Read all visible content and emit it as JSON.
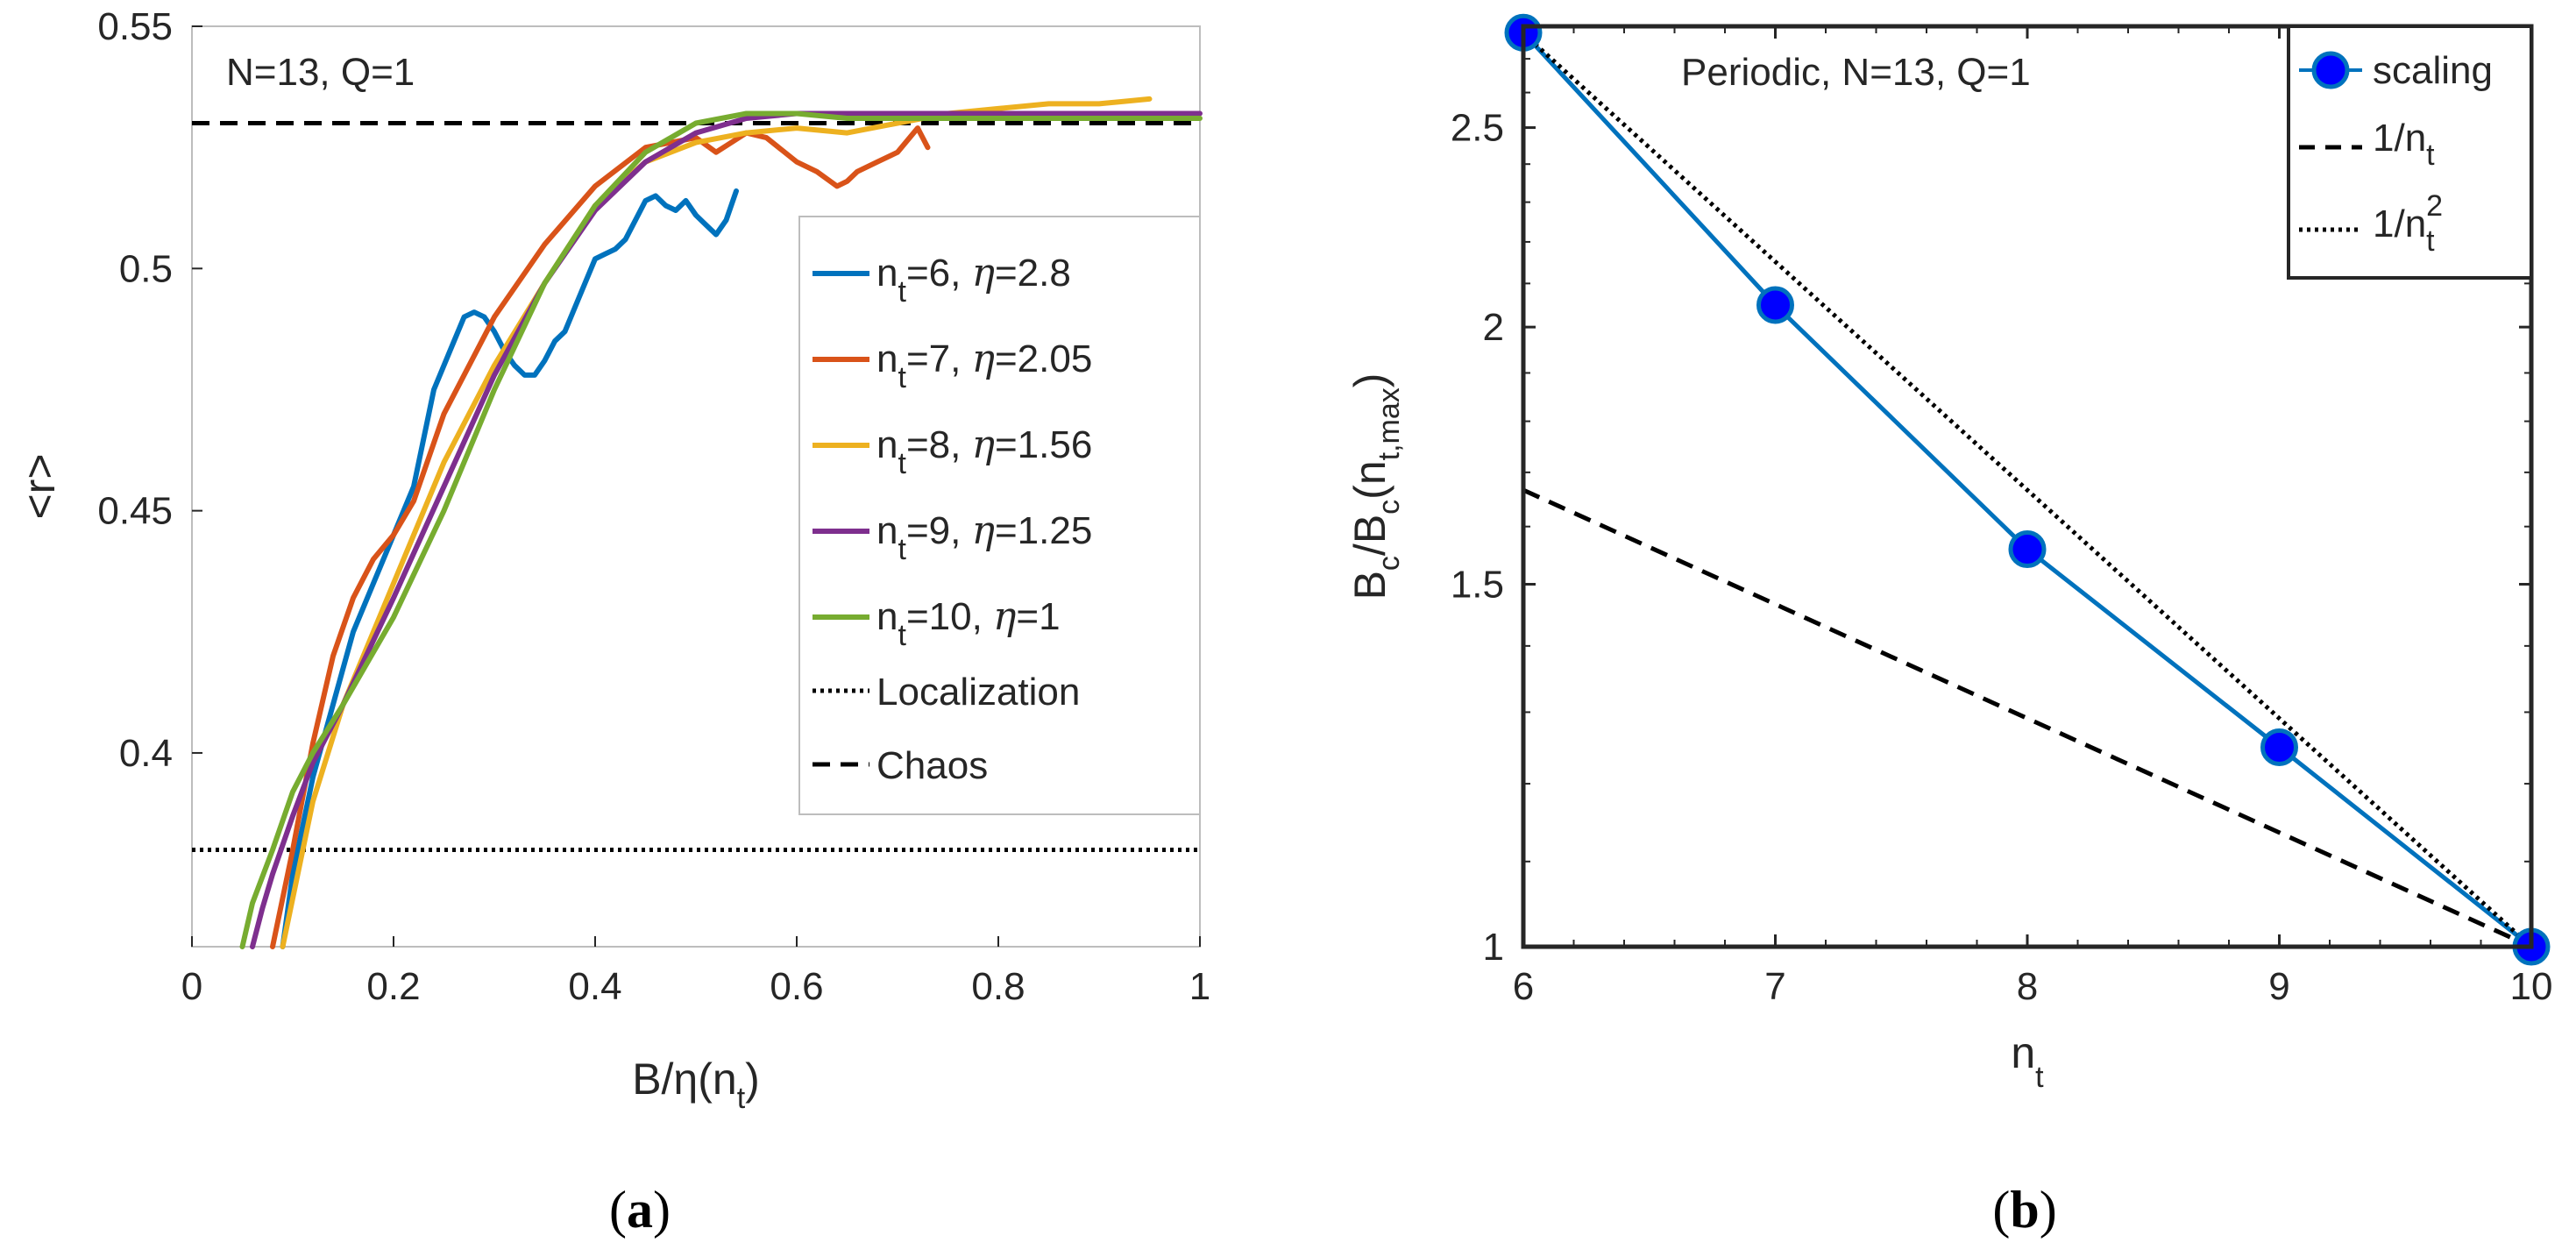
{
  "chart_data": [
    {
      "id": "a",
      "type": "line",
      "caption": "a",
      "annotation": "N=13, Q=1",
      "xlabel": "B/η(n_t)",
      "ylabel": "<r>",
      "xlim": [
        0,
        1
      ],
      "ylim": [
        0.36,
        0.55
      ],
      "xticks": [
        "0",
        "0.2",
        "0.4",
        "0.6",
        "0.8",
        "1"
      ],
      "xtick_values": [
        0,
        0.2,
        0.4,
        0.6,
        0.8,
        1
      ],
      "yticks": [
        "0.4",
        "0.45",
        "0.5",
        "0.55"
      ],
      "ytick_values": [
        0.4,
        0.45,
        0.5,
        0.55
      ],
      "grid": false,
      "legend_position": "right",
      "reference_lines": [
        {
          "name": "Localization",
          "y": 0.38,
          "style": "dotted",
          "color": "#000000"
        },
        {
          "name": "Chaos",
          "y": 0.53,
          "style": "dashed",
          "color": "#000000"
        }
      ],
      "series": [
        {
          "name": "n_t=6, η=2.8",
          "n_t": "6",
          "eta": "2.8",
          "color": "#0072BD",
          "x": [
            0.09,
            0.1,
            0.12,
            0.14,
            0.16,
            0.18,
            0.2,
            0.22,
            0.24,
            0.26,
            0.27,
            0.28,
            0.29,
            0.3,
            0.31,
            0.32,
            0.33,
            0.34,
            0.35,
            0.36,
            0.37,
            0.38,
            0.39,
            0.4,
            0.41,
            0.42,
            0.43,
            0.44,
            0.45,
            0.46,
            0.47,
            0.48,
            0.49,
            0.5,
            0.51,
            0.52,
            0.53,
            0.54
          ],
          "y": [
            0.36,
            0.375,
            0.395,
            0.41,
            0.425,
            0.435,
            0.445,
            0.455,
            0.475,
            0.485,
            0.49,
            0.491,
            0.49,
            0.487,
            0.483,
            0.48,
            0.478,
            0.478,
            0.481,
            0.485,
            0.487,
            0.492,
            0.497,
            0.502,
            0.503,
            0.504,
            0.506,
            0.51,
            0.514,
            0.515,
            0.513,
            0.512,
            0.514,
            0.511,
            0.509,
            0.507,
            0.51,
            0.516
          ]
        },
        {
          "name": "n_t=7, η=2.05",
          "n_t": "7",
          "eta": "2.05",
          "color": "#D95319",
          "x": [
            0.08,
            0.1,
            0.12,
            0.14,
            0.16,
            0.18,
            0.2,
            0.22,
            0.25,
            0.3,
            0.35,
            0.4,
            0.45,
            0.5,
            0.52,
            0.55,
            0.57,
            0.6,
            0.62,
            0.64,
            0.65,
            0.66,
            0.68,
            0.7,
            0.72,
            0.73
          ],
          "y": [
            0.36,
            0.38,
            0.402,
            0.42,
            0.432,
            0.44,
            0.445,
            0.452,
            0.47,
            0.49,
            0.505,
            0.517,
            0.525,
            0.527,
            0.524,
            0.528,
            0.527,
            0.522,
            0.52,
            0.517,
            0.518,
            0.52,
            0.522,
            0.524,
            0.529,
            0.525
          ]
        },
        {
          "name": "n_t=8, η=1.56",
          "n_t": "8",
          "eta": "1.56",
          "color": "#EDB120",
          "x": [
            0.09,
            0.1,
            0.12,
            0.15,
            0.2,
            0.25,
            0.3,
            0.35,
            0.4,
            0.45,
            0.5,
            0.55,
            0.6,
            0.65,
            0.7,
            0.75,
            0.8,
            0.85,
            0.9,
            0.95
          ],
          "y": [
            0.36,
            0.37,
            0.39,
            0.41,
            0.435,
            0.46,
            0.48,
            0.497,
            0.513,
            0.522,
            0.526,
            0.528,
            0.529,
            0.528,
            0.53,
            0.532,
            0.533,
            0.534,
            0.534,
            0.535
          ]
        },
        {
          "name": "n_t=9, η=1.25",
          "n_t": "9",
          "eta": "1.25",
          "color": "#7E2F8E",
          "x": [
            0.06,
            0.07,
            0.08,
            0.1,
            0.12,
            0.15,
            0.2,
            0.25,
            0.3,
            0.35,
            0.4,
            0.45,
            0.5,
            0.55,
            0.6,
            0.65,
            0.7,
            0.75,
            0.8,
            0.85,
            0.9,
            0.95,
            1.0
          ],
          "y": [
            0.36,
            0.368,
            0.375,
            0.387,
            0.398,
            0.41,
            0.432,
            0.455,
            0.478,
            0.497,
            0.512,
            0.522,
            0.528,
            0.531,
            0.532,
            0.532,
            0.532,
            0.532,
            0.532,
            0.532,
            0.532,
            0.532,
            0.532
          ]
        },
        {
          "name": "n_t=10, η=1",
          "n_t": "10",
          "eta": "1",
          "color": "#77AC30",
          "x": [
            0.05,
            0.06,
            0.08,
            0.1,
            0.12,
            0.15,
            0.2,
            0.25,
            0.3,
            0.35,
            0.4,
            0.45,
            0.5,
            0.55,
            0.6,
            0.65,
            0.7,
            0.75,
            0.8,
            0.85,
            0.9,
            0.95,
            1.0
          ],
          "y": [
            0.36,
            0.369,
            0.38,
            0.392,
            0.4,
            0.41,
            0.428,
            0.45,
            0.475,
            0.497,
            0.513,
            0.524,
            0.53,
            0.532,
            0.532,
            0.531,
            0.531,
            0.531,
            0.531,
            0.531,
            0.531,
            0.531,
            0.531
          ]
        }
      ],
      "legend": [
        {
          "kind": "series",
          "n": "6",
          "eta": "2.8",
          "color": "#0072BD"
        },
        {
          "kind": "series",
          "n": "7",
          "eta": "2.05",
          "color": "#D95319"
        },
        {
          "kind": "series",
          "n": "8",
          "eta": "1.56",
          "color": "#EDB120"
        },
        {
          "kind": "series",
          "n": "9",
          "eta": "1.25",
          "color": "#7E2F8E"
        },
        {
          "kind": "series",
          "n": "10",
          "eta": "1",
          "color": "#77AC30"
        },
        {
          "kind": "line",
          "style": "dotted",
          "label": "Localization"
        },
        {
          "kind": "line",
          "style": "dashed",
          "label": "Chaos"
        }
      ]
    },
    {
      "id": "b",
      "type": "line",
      "caption": "b",
      "annotation": "Periodic, N=13, Q=1",
      "xlabel": "n_t",
      "ylabel": "B_c/B_c(n_t,max)",
      "xlim": [
        6,
        10
      ],
      "ylim": [
        1,
        2.8
      ],
      "yscale": "log",
      "xticks": [
        "6",
        "7",
        "8",
        "9",
        "10"
      ],
      "xtick_values": [
        6,
        7,
        8,
        9,
        10
      ],
      "yticks": [
        "1",
        "1.5",
        "2",
        "2.5"
      ],
      "ytick_values": [
        1,
        1.5,
        2,
        2.5
      ],
      "grid": false,
      "legend_position": "top-right",
      "series": [
        {
          "name": "scaling",
          "color": "#0072BD",
          "marker_color": "#0000FF",
          "x": [
            6,
            7,
            8,
            9,
            10
          ],
          "y": [
            2.78,
            2.05,
            1.56,
            1.25,
            1.0
          ]
        },
        {
          "name": "1/n_t",
          "style": "dashed",
          "color": "#000000",
          "x": [
            6,
            10
          ],
          "y": [
            1.6667,
            1.0
          ]
        },
        {
          "name": "1/n_t^2",
          "style": "dotted",
          "color": "#000000",
          "x": [
            6,
            10
          ],
          "y": [
            2.7778,
            1.0
          ]
        }
      ],
      "legend": [
        {
          "kind": "marker",
          "label": "scaling"
        },
        {
          "kind": "dashed",
          "label": "1/n",
          "sub": "t",
          "sup": ""
        },
        {
          "kind": "dotted",
          "label": "1/n",
          "sub": "t",
          "sup": "2"
        }
      ]
    }
  ]
}
